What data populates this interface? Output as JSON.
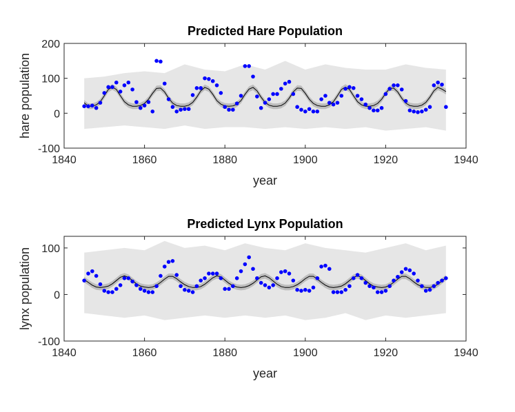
{
  "chart_data": [
    {
      "type": "line",
      "title": "Predicted Hare Population",
      "xlabel": "year",
      "ylabel": "hare population",
      "xlim": [
        1840,
        1940
      ],
      "xticks": [
        1840,
        1860,
        1880,
        1900,
        1920,
        1940
      ],
      "ylim": [
        -100,
        200
      ],
      "yticks": [
        -100,
        0,
        100,
        200
      ],
      "x": [
        1845,
        1846,
        1847,
        1848,
        1849,
        1850,
        1851,
        1852,
        1853,
        1854,
        1855,
        1856,
        1857,
        1858,
        1859,
        1860,
        1861,
        1862,
        1863,
        1864,
        1865,
        1866,
        1867,
        1868,
        1869,
        1870,
        1871,
        1872,
        1873,
        1874,
        1875,
        1876,
        1877,
        1878,
        1879,
        1880,
        1881,
        1882,
        1883,
        1884,
        1885,
        1886,
        1887,
        1888,
        1889,
        1890,
        1891,
        1892,
        1893,
        1894,
        1895,
        1896,
        1897,
        1898,
        1899,
        1900,
        1901,
        1902,
        1903,
        1904,
        1905,
        1906,
        1907,
        1908,
        1909,
        1910,
        1911,
        1912,
        1913,
        1914,
        1915,
        1916,
        1917,
        1918,
        1919,
        1920,
        1921,
        1922,
        1923,
        1924,
        1925,
        1926,
        1927,
        1928,
        1929,
        1930,
        1931,
        1932,
        1933,
        1934,
        1935
      ],
      "observed": {
        "color": "#0000ff",
        "values": [
          20,
          20,
          22,
          15,
          30,
          58,
          75,
          75,
          88,
          62,
          80,
          88,
          68,
          32,
          15,
          22,
          32,
          5,
          150,
          148,
          85,
          40,
          18,
          5,
          10,
          12,
          12,
          52,
          72,
          72,
          100,
          98,
          92,
          80,
          58,
          18,
          10,
          10,
          28,
          50,
          135,
          135,
          105,
          48,
          15,
          30,
          40,
          55,
          55,
          70,
          85,
          90,
          55,
          18,
          10,
          5,
          12,
          5,
          5,
          40,
          50,
          30,
          25,
          30,
          50,
          70,
          75,
          72,
          50,
          40,
          25,
          15,
          8,
          8,
          15,
          55,
          70,
          80,
          80,
          68,
          35,
          8,
          5,
          3,
          5,
          10,
          18,
          80,
          88,
          82,
          18
        ]
      },
      "median": {
        "color": "#000000",
        "values": [
          30,
          20,
          20,
          24,
          33,
          50,
          68,
          75,
          68,
          50,
          33,
          24,
          20,
          20,
          22,
          28,
          40,
          57,
          71,
          72,
          61,
          43,
          29,
          22,
          20,
          20,
          23,
          31,
          46,
          64,
          74,
          69,
          54,
          36,
          26,
          21,
          20,
          21,
          26,
          36,
          54,
          69,
          74,
          64,
          46,
          31,
          23,
          20,
          20,
          22,
          29,
          43,
          61,
          72,
          71,
          57,
          40,
          28,
          22,
          20,
          20,
          24,
          33,
          50,
          68,
          75,
          68,
          50,
          33,
          24,
          20,
          20,
          22,
          28,
          40,
          57,
          71,
          72,
          61,
          43,
          29,
          22,
          20,
          20,
          23,
          31,
          46,
          64,
          74,
          69,
          62
        ]
      },
      "inner_band": {
        "color": "#bdbdbd",
        "lower": [
          22,
          12,
          12,
          16,
          25,
          42,
          60,
          67,
          60,
          42,
          25,
          16,
          12,
          12,
          14,
          20,
          32,
          49,
          63,
          64,
          53,
          35,
          21,
          14,
          12,
          12,
          15,
          23,
          38,
          56,
          66,
          61,
          46,
          28,
          18,
          13,
          12,
          13,
          18,
          28,
          46,
          61,
          66,
          56,
          38,
          23,
          15,
          12,
          12,
          14,
          21,
          35,
          53,
          64,
          63,
          49,
          32,
          20,
          14,
          12,
          12,
          16,
          25,
          42,
          60,
          67,
          60,
          42,
          25,
          16,
          12,
          12,
          14,
          20,
          32,
          49,
          63,
          64,
          53,
          35,
          21,
          14,
          12,
          12,
          15,
          23,
          38,
          56,
          66,
          61,
          54
        ],
        "upper": [
          38,
          28,
          28,
          32,
          41,
          58,
          76,
          83,
          76,
          58,
          41,
          32,
          28,
          28,
          30,
          36,
          48,
          65,
          79,
          80,
          69,
          51,
          37,
          30,
          28,
          28,
          31,
          39,
          54,
          72,
          82,
          77,
          62,
          44,
          34,
          29,
          28,
          29,
          34,
          44,
          62,
          77,
          82,
          72,
          54,
          39,
          31,
          28,
          28,
          30,
          37,
          51,
          69,
          80,
          79,
          65,
          48,
          36,
          30,
          28,
          28,
          32,
          41,
          58,
          76,
          83,
          76,
          58,
          41,
          32,
          28,
          28,
          30,
          36,
          48,
          65,
          79,
          80,
          69,
          51,
          37,
          30,
          28,
          28,
          31,
          39,
          54,
          72,
          82,
          77,
          70
        ]
      },
      "outer_band": {
        "color": "#e6e6e6",
        "x": [
          1845,
          1850,
          1855,
          1860,
          1865,
          1870,
          1875,
          1880,
          1885,
          1890,
          1895,
          1900,
          1905,
          1910,
          1915,
          1920,
          1925,
          1930,
          1935
        ],
        "lower": [
          -45,
          -40,
          -35,
          -40,
          -45,
          -35,
          -45,
          -40,
          -40,
          -45,
          -40,
          -45,
          -40,
          -45,
          -40,
          -50,
          -45,
          -40,
          -50
        ],
        "upper": [
          100,
          105,
          115,
          120,
          115,
          140,
          125,
          120,
          140,
          125,
          150,
          125,
          140,
          130,
          125,
          125,
          140,
          130,
          125
        ]
      }
    },
    {
      "type": "line",
      "title": "Predicted Lynx Population",
      "xlabel": "year",
      "ylabel": "lynx population",
      "xlim": [
        1840,
        1940
      ],
      "xticks": [
        1840,
        1860,
        1880,
        1900,
        1920,
        1940
      ],
      "ylim": [
        -100,
        125
      ],
      "yticks": [
        -100,
        0,
        100
      ],
      "x": [
        1845,
        1846,
        1847,
        1848,
        1849,
        1850,
        1851,
        1852,
        1853,
        1854,
        1855,
        1856,
        1857,
        1858,
        1859,
        1860,
        1861,
        1862,
        1863,
        1864,
        1865,
        1866,
        1867,
        1868,
        1869,
        1870,
        1871,
        1872,
        1873,
        1874,
        1875,
        1876,
        1877,
        1878,
        1879,
        1880,
        1881,
        1882,
        1883,
        1884,
        1885,
        1886,
        1887,
        1888,
        1889,
        1890,
        1891,
        1892,
        1893,
        1894,
        1895,
        1896,
        1897,
        1898,
        1899,
        1900,
        1901,
        1902,
        1903,
        1904,
        1905,
        1906,
        1907,
        1908,
        1909,
        1910,
        1911,
        1912,
        1913,
        1914,
        1915,
        1916,
        1917,
        1918,
        1919,
        1920,
        1921,
        1922,
        1923,
        1924,
        1925,
        1926,
        1927,
        1928,
        1929,
        1930,
        1931,
        1932,
        1933,
        1934,
        1935
      ],
      "observed": {
        "color": "#0000ff",
        "values": [
          30,
          45,
          50,
          40,
          22,
          8,
          5,
          5,
          12,
          20,
          35,
          35,
          28,
          20,
          12,
          8,
          5,
          5,
          18,
          40,
          60,
          70,
          72,
          42,
          18,
          10,
          8,
          5,
          18,
          30,
          35,
          45,
          45,
          45,
          35,
          12,
          12,
          18,
          35,
          50,
          65,
          80,
          55,
          35,
          25,
          20,
          15,
          20,
          35,
          48,
          50,
          45,
          30,
          10,
          8,
          10,
          8,
          15,
          35,
          60,
          62,
          55,
          5,
          5,
          5,
          10,
          18,
          35,
          42,
          35,
          25,
          18,
          15,
          5,
          5,
          8,
          18,
          30,
          38,
          48,
          55,
          52,
          45,
          30,
          18,
          8,
          10,
          18,
          25,
          30,
          35
        ]
      },
      "median": {
        "color": "#000000",
        "values": [
          32,
          26,
          20,
          16,
          15,
          16,
          18,
          23,
          30,
          37,
          40,
          37,
          30,
          23,
          18,
          16,
          15,
          16,
          20,
          26,
          33,
          39,
          39,
          34,
          27,
          21,
          17,
          15,
          15,
          17,
          22,
          29,
          36,
          40,
          38,
          31,
          24,
          19,
          16,
          15,
          16,
          19,
          24,
          31,
          38,
          40,
          36,
          29,
          22,
          17,
          15,
          15,
          17,
          21,
          27,
          34,
          39,
          39,
          33,
          26,
          20,
          16,
          15,
          16,
          18,
          23,
          30,
          37,
          40,
          37,
          30,
          23,
          18,
          16,
          15,
          16,
          20,
          26,
          33,
          39,
          39,
          34,
          27,
          21,
          17,
          15,
          15,
          17,
          22,
          29,
          36
        ]
      },
      "inner_band": {
        "color": "#bdbdbd",
        "lower": [
          26,
          20,
          14,
          10,
          9,
          10,
          12,
          17,
          24,
          31,
          34,
          31,
          24,
          17,
          12,
          10,
          9,
          10,
          14,
          20,
          27,
          33,
          33,
          28,
          21,
          15,
          11,
          9,
          9,
          11,
          16,
          23,
          30,
          34,
          32,
          25,
          18,
          13,
          10,
          9,
          10,
          13,
          18,
          25,
          32,
          34,
          30,
          23,
          16,
          11,
          9,
          9,
          11,
          15,
          21,
          28,
          33,
          33,
          27,
          20,
          14,
          10,
          9,
          10,
          12,
          17,
          24,
          31,
          34,
          31,
          24,
          17,
          12,
          10,
          9,
          10,
          14,
          20,
          27,
          33,
          33,
          28,
          21,
          15,
          11,
          9,
          9,
          11,
          16,
          23,
          30
        ],
        "upper": [
          38,
          32,
          26,
          22,
          21,
          22,
          24,
          29,
          36,
          43,
          46,
          43,
          36,
          29,
          24,
          22,
          21,
          22,
          26,
          32,
          39,
          45,
          45,
          40,
          33,
          27,
          23,
          21,
          21,
          23,
          28,
          35,
          42,
          46,
          44,
          37,
          30,
          25,
          22,
          21,
          22,
          25,
          30,
          37,
          44,
          46,
          42,
          35,
          28,
          23,
          21,
          21,
          23,
          27,
          33,
          40,
          45,
          45,
          39,
          32,
          26,
          22,
          21,
          22,
          24,
          29,
          36,
          43,
          46,
          43,
          36,
          29,
          24,
          22,
          21,
          22,
          26,
          32,
          39,
          45,
          45,
          40,
          33,
          27,
          23,
          21,
          21,
          23,
          28,
          35,
          42
        ]
      },
      "outer_band": {
        "color": "#e6e6e6",
        "x": [
          1845,
          1850,
          1855,
          1860,
          1865,
          1870,
          1875,
          1880,
          1885,
          1890,
          1895,
          1900,
          1905,
          1910,
          1915,
          1920,
          1925,
          1930,
          1935
        ],
        "lower": [
          -40,
          -45,
          -50,
          -45,
          -55,
          -50,
          -45,
          -50,
          -45,
          -50,
          -45,
          -55,
          -50,
          -40,
          -55,
          -45,
          -50,
          -45,
          -40
        ],
        "upper": [
          90,
          95,
          100,
          95,
          115,
          100,
          105,
          95,
          110,
          100,
          95,
          110,
          100,
          95,
          90,
          100,
          110,
          95,
          105
        ]
      }
    }
  ]
}
